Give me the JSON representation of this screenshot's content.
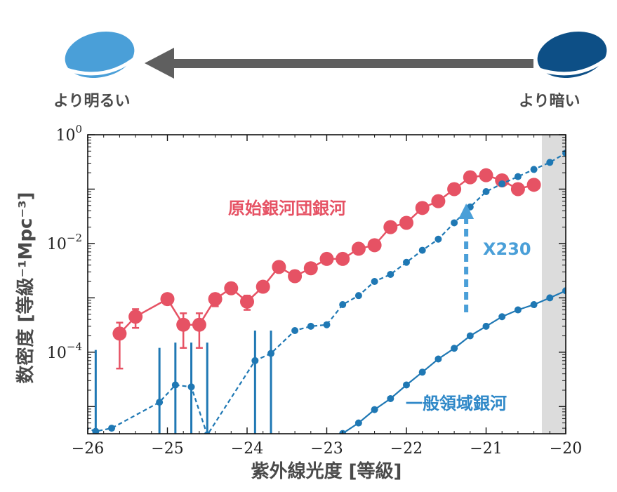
{
  "header": {
    "brighter_label": "より明るい",
    "fainter_label": "より暗い",
    "brighter_color": "#4a9fd8",
    "fainter_color": "#0d4f86",
    "arrow_color": "#5f5f5f"
  },
  "chart_data": {
    "type": "scatter",
    "xlabel": "紫外線光度 [等級]",
    "ylabel": "数密度 [等級⁻¹Mpc⁻³]",
    "xlim": [
      -26,
      -20
    ],
    "ylim_log10": [
      -5.5,
      0
    ],
    "y_scale": "log",
    "x_ticks": [
      -26,
      -25,
      -24,
      -23,
      -22,
      -21,
      -20
    ],
    "x_tick_labels": [
      "−26",
      "−25",
      "−24",
      "−23",
      "−22",
      "−21",
      "−20"
    ],
    "y_ticks_log10": [
      0,
      -2,
      -4
    ],
    "y_tick_labels": [
      {
        "base": "10",
        "exp": "0"
      },
      {
        "base": "10",
        "exp": "−2"
      },
      {
        "base": "10",
        "exp": "−4"
      }
    ],
    "shaded_region": {
      "x": [
        -20.3,
        -20
      ],
      "color": "#dcdcdc"
    },
    "annotations": {
      "protocluster": "原始銀河団銀河",
      "field": "一般領域銀河",
      "factor": "X230"
    },
    "series": [
      {
        "name": "原始銀河団銀河",
        "color": "#e65264",
        "marker": "large-circle",
        "line": "solid",
        "points": [
          {
            "x": -25.6,
            "y": 0.00022,
            "lo": 5e-05,
            "hi": 0.00035
          },
          {
            "x": -25.4,
            "y": 0.00045,
            "lo": 0.00028,
            "hi": 0.00062
          },
          {
            "x": -25.0,
            "y": 0.00095,
            "lo": 0.00075,
            "hi": 0.00115
          },
          {
            "x": -24.8,
            "y": 0.00032,
            "lo": 0.00012,
            "hi": 0.00052
          },
          {
            "x": -24.6,
            "y": 0.00032,
            "lo": 0.00012,
            "hi": 0.00052
          },
          {
            "x": -24.4,
            "y": 0.00095,
            "lo": 0.0007,
            "hi": 0.0012
          },
          {
            "x": -24.2,
            "y": 0.0015,
            "lo": 0.0013,
            "hi": 0.0017
          },
          {
            "x": -24.0,
            "y": 0.00085,
            "lo": 0.0006,
            "hi": 0.0011
          },
          {
            "x": -23.8,
            "y": 0.0016,
            "lo": 0.0013,
            "hi": 0.0019
          },
          {
            "x": -23.6,
            "y": 0.0037
          },
          {
            "x": -23.4,
            "y": 0.0025
          },
          {
            "x": -23.2,
            "y": 0.0035
          },
          {
            "x": -23.0,
            "y": 0.0052
          },
          {
            "x": -22.8,
            "y": 0.0052
          },
          {
            "x": -22.6,
            "y": 0.008
          },
          {
            "x": -22.4,
            "y": 0.0093
          },
          {
            "x": -22.2,
            "y": 0.02
          },
          {
            "x": -22.0,
            "y": 0.024
          },
          {
            "x": -21.8,
            "y": 0.045
          },
          {
            "x": -21.6,
            "y": 0.06
          },
          {
            "x": -21.4,
            "y": 0.1
          },
          {
            "x": -21.2,
            "y": 0.165
          },
          {
            "x": -21.0,
            "y": 0.18
          },
          {
            "x": -20.8,
            "y": 0.145
          },
          {
            "x": -20.6,
            "y": 0.1
          },
          {
            "x": -20.4,
            "y": 0.12
          }
        ]
      },
      {
        "name": "一般領域銀河 ×230",
        "color": "#1f78b4",
        "marker": "small-circle",
        "line": "dashed",
        "points": [
          {
            "x": -26.2,
            "y": 5e-06
          },
          {
            "x": -25.9,
            "y": 3.5e-06,
            "lo": 3e-07,
            "hi": 0.00011
          },
          {
            "x": -25.7,
            "y": 4e-06
          },
          {
            "x": -25.1,
            "y": 1.2e-05,
            "lo": 3e-07,
            "hi": 0.00012
          },
          {
            "x": -24.9,
            "y": 2.5e-05,
            "lo": 3e-07,
            "hi": 0.00015
          },
          {
            "x": -24.7,
            "y": 2.3e-05,
            "lo": 3e-07,
            "hi": 0.00015
          },
          {
            "x": -24.5,
            "y": 3e-06,
            "lo": 3e-07,
            "hi": 0.00015
          },
          {
            "x": -23.9,
            "y": 7e-05,
            "lo": 3e-07,
            "hi": 0.00025
          },
          {
            "x": -23.7,
            "y": 9.5e-05,
            "lo": 3e-07,
            "hi": 0.00025
          },
          {
            "x": -23.4,
            "y": 0.00025
          },
          {
            "x": -23.2,
            "y": 0.0003
          },
          {
            "x": -23.0,
            "y": 0.00032
          },
          {
            "x": -22.8,
            "y": 0.00075
          },
          {
            "x": -22.6,
            "y": 0.0011
          },
          {
            "x": -22.4,
            "y": 0.002
          },
          {
            "x": -22.2,
            "y": 0.0027
          },
          {
            "x": -22.0,
            "y": 0.0045
          },
          {
            "x": -21.8,
            "y": 0.0075
          },
          {
            "x": -21.6,
            "y": 0.012
          },
          {
            "x": -21.4,
            "y": 0.024
          },
          {
            "x": -21.2,
            "y": 0.047
          },
          {
            "x": -21.0,
            "y": 0.09
          },
          {
            "x": -20.8,
            "y": 0.125
          },
          {
            "x": -20.6,
            "y": 0.17
          },
          {
            "x": -20.4,
            "y": 0.23
          },
          {
            "x": -20.2,
            "y": 0.31
          },
          {
            "x": -20.0,
            "y": 0.46
          }
        ]
      },
      {
        "name": "一般領域銀河",
        "color": "#1f78b4",
        "marker": "small-circle",
        "line": "solid",
        "points": [
          {
            "x": -23.0,
            "y": 1.7e-06
          },
          {
            "x": -22.8,
            "y": 3.2e-06
          },
          {
            "x": -22.6,
            "y": 5e-06
          },
          {
            "x": -22.4,
            "y": 8.8e-06
          },
          {
            "x": -22.2,
            "y": 1.4e-05
          },
          {
            "x": -22.0,
            "y": 2.5e-05
          },
          {
            "x": -21.8,
            "y": 4.3e-05
          },
          {
            "x": -21.6,
            "y": 7.5e-05
          },
          {
            "x": -21.4,
            "y": 0.000118
          },
          {
            "x": -21.2,
            "y": 0.0002
          },
          {
            "x": -21.0,
            "y": 0.0003
          },
          {
            "x": -20.8,
            "y": 0.00045
          },
          {
            "x": -20.6,
            "y": 0.0006
          },
          {
            "x": -20.4,
            "y": 0.00075
          },
          {
            "x": -20.2,
            "y": 0.001
          },
          {
            "x": -20.0,
            "y": 0.00135
          }
        ]
      }
    ]
  }
}
